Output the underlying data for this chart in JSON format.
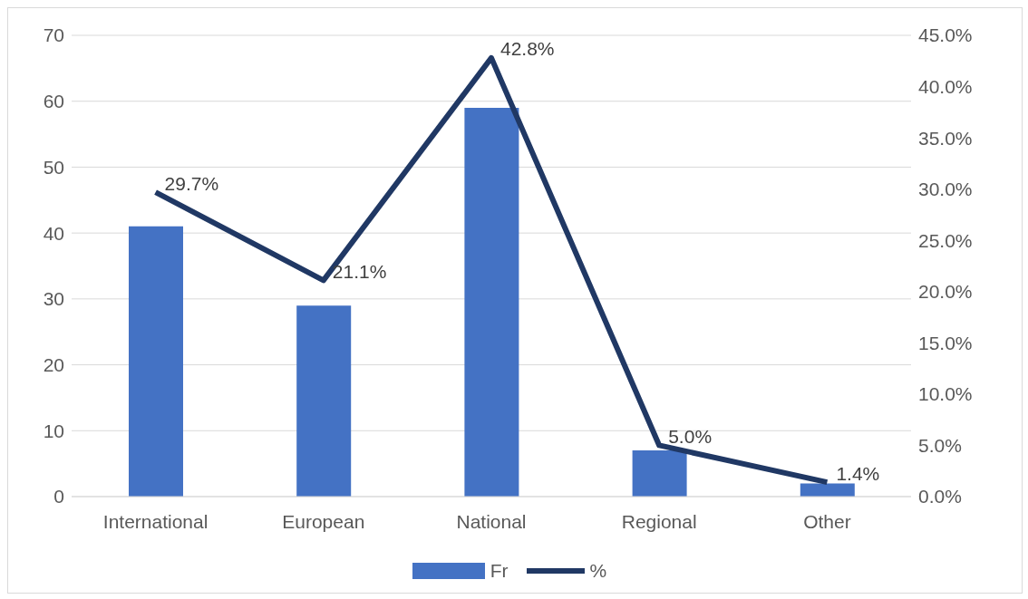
{
  "chart_data": {
    "type": "bar",
    "categories": [
      "International",
      "European",
      "National",
      "Regional",
      "Other"
    ],
    "series": [
      {
        "name": "Fr",
        "color": "#4472c4",
        "values": [
          41,
          29,
          59,
          7,
          2
        ]
      },
      {
        "name": "%",
        "type": "line",
        "axis": "y2",
        "color": "#203864",
        "values": [
          29.7,
          21.1,
          42.8,
          5.0,
          1.4
        ],
        "value_labels": [
          "29.7%",
          "21.1%",
          "42.8%",
          "5.0%",
          "1.4%"
        ]
      }
    ],
    "ylim": [
      0,
      70
    ],
    "yticks": [
      0,
      10,
      20,
      30,
      40,
      50,
      60,
      70
    ],
    "y2lim": [
      0,
      45
    ],
    "y2ticks": [
      {
        "value": 0,
        "label": "0.0%"
      },
      {
        "value": 5,
        "label": "5.0%"
      },
      {
        "value": 10,
        "label": "10.0%"
      },
      {
        "value": 15,
        "label": "15.0%"
      },
      {
        "value": 20,
        "label": "20.0%"
      },
      {
        "value": 25,
        "label": "25.0%"
      },
      {
        "value": 30,
        "label": "30.0%"
      },
      {
        "value": 35,
        "label": "35.0%"
      },
      {
        "value": 40,
        "label": "40.0%"
      },
      {
        "value": 45,
        "label": "45.0%"
      }
    ],
    "grid": "y",
    "legend": "bottom",
    "marker": "none"
  }
}
